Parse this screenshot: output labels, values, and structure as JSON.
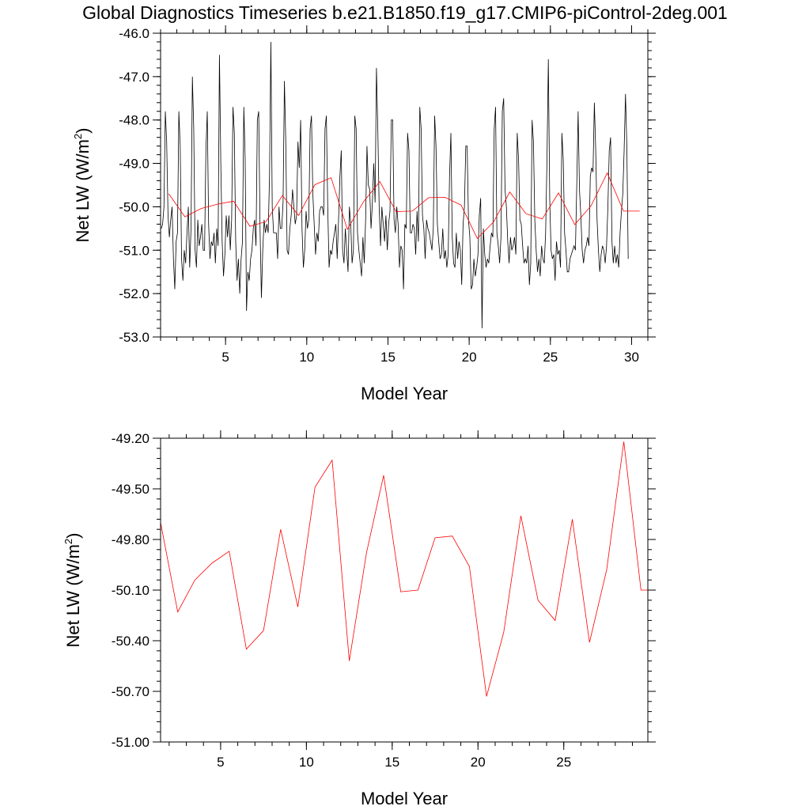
{
  "figure_title": "Global Diagnostics Timeseries b.e21.B1850.f19_g17.CMIP6-piControl-2deg.001",
  "colors": {
    "monthly": "#000000",
    "annual": "#ff0000",
    "axes": "#000000"
  },
  "chart_data": [
    {
      "id": "top",
      "type": "line",
      "xlabel": "Model Year",
      "ylabel": "Net LW (W/m",
      "ylabel_sup": "2",
      "ylabel_close": ")",
      "xlim": [
        1,
        31
      ],
      "ylim": [
        -53.0,
        -46.0
      ],
      "xticks": [
        5,
        10,
        15,
        20,
        25,
        30
      ],
      "xtick_labels": [
        "5",
        "10",
        "15",
        "20",
        "25",
        "30"
      ],
      "yticks": [
        -46.0,
        -47.0,
        -48.0,
        -49.0,
        -50.0,
        -51.0,
        -52.0,
        -53.0
      ],
      "ytick_labels": [
        "-46.0",
        "-47.0",
        "-48.0",
        "-49.0",
        "-50.0",
        "-51.0",
        "-52.0",
        "-53.0"
      ],
      "series": [
        {
          "name": "monthly",
          "color": "#000000",
          "x_start": 1.0417,
          "x_step": 0.08333,
          "values": [
            -50.5,
            -50.4,
            -50.0,
            -47.8,
            -48.5,
            -50.2,
            -50.7,
            -50.3,
            -50.0,
            -51.2,
            -51.9,
            -50.8,
            -50.6,
            -47.8,
            -48.6,
            -51.2,
            -51.7,
            -51.0,
            -51.3,
            -50.6,
            -50.0,
            -51.4,
            -50.5,
            -47.0,
            -48.2,
            -51.0,
            -51.4,
            -50.3,
            -50.9,
            -50.7,
            -50.4,
            -51.0,
            -51.0,
            -48.7,
            -47.8,
            -50.4,
            -51.2,
            -50.8,
            -50.9,
            -50.6,
            -51.3,
            -50.5,
            -50.9,
            -46.5,
            -49.0,
            -50.8,
            -51.6,
            -51.1,
            -50.2,
            -50.7,
            -50.2,
            -51.0,
            -50.3,
            -47.7,
            -48.3,
            -50.8,
            -51.7,
            -51.2,
            -52.0,
            -51.2,
            -50.8,
            -47.7,
            -48.9,
            -52.4,
            -51.5,
            -51.7,
            -51.2,
            -51.0,
            -50.5,
            -50.3,
            -50.9,
            -48.0,
            -47.8,
            -50.5,
            -52.1,
            -51.0,
            -50.3,
            -50.6,
            -50.4,
            -50.6,
            -49.3,
            -46.2,
            -50.0,
            -50.6,
            -50.6,
            -50.6,
            -51.2,
            -50.0,
            -50.5,
            -50.5,
            -49.9,
            -47.1,
            -48.5,
            -51.0,
            -51.1,
            -50.5,
            -50.2,
            -49.6,
            -50.0,
            -50.4,
            -50.2,
            -48.5,
            -49.1,
            -48.0,
            -50.5,
            -51.4,
            -51.0,
            -50.1,
            -50.5,
            -50.3,
            -48.2,
            -47.9,
            -49.7,
            -50.4,
            -51.1,
            -50.6,
            -50.8,
            -50.1,
            -50.0,
            -50.0,
            -50.2,
            -48.2,
            -47.9,
            -50.0,
            -51.4,
            -51.0,
            -51.1,
            -50.8,
            -50.6,
            -50.4,
            -51.2,
            -50.3,
            -49.3,
            -48.7,
            -51.0,
            -51.3,
            -50.5,
            -51.0,
            -51.5,
            -50.0,
            -50.4,
            -51.3,
            -51.0,
            -47.9,
            -48.2,
            -50.6,
            -51.0,
            -51.3,
            -51.6,
            -50.7,
            -51.3,
            -50.3,
            -48.6,
            -49.5,
            -49.6,
            -50.5,
            -49.9,
            -49.0,
            -49.9,
            -46.8,
            -48.2,
            -50.0,
            -50.9,
            -50.0,
            -50.4,
            -50.8,
            -50.2,
            -51.0,
            -50.4,
            -50.1,
            -48.0,
            -48.0,
            -50.3,
            -50.6,
            -50.0,
            -50.4,
            -51.4,
            -50.9,
            -51.0,
            -51.9,
            -50.4,
            -50.5,
            -48.3,
            -48.7,
            -50.6,
            -50.6,
            -50.4,
            -50.5,
            -51.1,
            -50.1,
            -50.8,
            -47.7,
            -48.2,
            -50.2,
            -50.5,
            -51.2,
            -50.3,
            -50.5,
            -50.6,
            -50.8,
            -51.0,
            -50.5,
            -47.9,
            -48.6,
            -50.4,
            -50.8,
            -51.2,
            -51.1,
            -50.5,
            -51.2,
            -51.0,
            -51.4,
            -51.1,
            -49.3,
            -48.3,
            -50.7,
            -51.3,
            -51.4,
            -50.6,
            -51.2,
            -50.8,
            -51.0,
            -51.8,
            -50.4,
            -50.0,
            -48.6,
            -48.6,
            -50.3,
            -50.7,
            -51.9,
            -51.8,
            -51.2,
            -51.6,
            -51.4,
            -51.1,
            -50.2,
            -49.8,
            -52.8,
            -50.5,
            -51.1,
            -51.4,
            -51.2,
            -51.3,
            -50.9,
            -50.6,
            -50.7,
            -48.2,
            -47.7,
            -50.6,
            -50.9,
            -51.3,
            -50.7,
            -47.8,
            -47.5,
            -49.6,
            -50.0,
            -50.8,
            -51.3,
            -50.7,
            -51.0,
            -50.9,
            -50.7,
            -51.1,
            -48.3,
            -48.9,
            -50.3,
            -50.4,
            -50.9,
            -51.3,
            -51.2,
            -51.3,
            -50.9,
            -51.8,
            -51.3,
            -48.0,
            -48.5,
            -50.3,
            -51.0,
            -51.5,
            -51.2,
            -51.6,
            -50.9,
            -51.2,
            -51.3,
            -50.6,
            -48.9,
            -46.6,
            -49.8,
            -51.0,
            -51.2,
            -51.1,
            -51.7,
            -50.8,
            -51.1,
            -51.0,
            -51.4,
            -48.3,
            -48.9,
            -50.6,
            -51.0,
            -51.5,
            -51.5,
            -51.2,
            -51.1,
            -51.0,
            -50.9,
            -51.0,
            -49.5,
            -47.8,
            -49.6,
            -50.2,
            -51.0,
            -51.3,
            -51.0,
            -50.9,
            -50.7,
            -50.9,
            -49.3,
            -49.1,
            -49.2,
            -47.6,
            -48.7,
            -50.3,
            -51.0,
            -51.5,
            -51.1,
            -50.9,
            -51.0,
            -51.3,
            -50.9,
            -50.0,
            -48.7,
            -48.4,
            -50.8,
            -51.3,
            -50.9,
            -51.3,
            -51.1,
            -51.4,
            -50.6,
            -50.1,
            -49.7,
            -48.7,
            -47.4,
            -48.6,
            -51.2
          ]
        },
        {
          "name": "annual",
          "color": "#ff0000",
          "x": [
            1.5,
            2.5,
            3.5,
            4.5,
            5.5,
            6.5,
            7.5,
            8.5,
            9.5,
            10.5,
            11.5,
            12.5,
            13.5,
            14.5,
            15.5,
            16.5,
            17.5,
            18.5,
            19.5,
            20.5,
            21.5,
            22.5,
            23.5,
            24.5,
            25.5,
            26.5,
            27.5,
            28.5,
            29.5,
            30.5
          ],
          "values": [
            -49.7,
            -50.23,
            -50.04,
            -49.94,
            -49.87,
            -50.45,
            -50.34,
            -49.74,
            -50.2,
            -49.49,
            -49.33,
            -50.52,
            -49.88,
            -49.42,
            -50.11,
            -50.1,
            -49.79,
            -49.78,
            -49.96,
            -50.73,
            -50.35,
            -49.66,
            -50.16,
            -50.28,
            -49.68,
            -50.41,
            -49.98,
            -49.22,
            -50.1,
            -50.1
          ]
        }
      ]
    },
    {
      "id": "bottom",
      "type": "line",
      "xlabel": "Model Year",
      "ylabel": "Net LW (W/m",
      "ylabel_sup": "2",
      "ylabel_close": ")",
      "xlim": [
        1.5,
        29.9
      ],
      "ylim": [
        -51.0,
        -49.2
      ],
      "xticks": [
        5,
        10,
        15,
        20,
        25
      ],
      "xtick_labels": [
        "5",
        "10",
        "15",
        "20",
        "25"
      ],
      "yticks": [
        -49.2,
        -49.5,
        -49.8,
        -50.1,
        -50.4,
        -50.7,
        -51.0
      ],
      "ytick_labels": [
        "-49.20",
        "-49.50",
        "-49.80",
        "-50.10",
        "-50.40",
        "-50.70",
        "-51.00"
      ],
      "series": [
        {
          "name": "annual",
          "color": "#ff0000",
          "x": [
            1.5,
            2.5,
            3.5,
            4.5,
            5.5,
            6.5,
            7.5,
            8.5,
            9.5,
            10.5,
            11.5,
            12.5,
            13.5,
            14.5,
            15.5,
            16.5,
            17.5,
            18.5,
            19.5,
            20.5,
            21.5,
            22.5,
            23.5,
            24.5,
            25.5,
            26.5,
            27.5,
            28.5,
            29.5,
            29.9
          ],
          "values": [
            -49.7,
            -50.23,
            -50.04,
            -49.94,
            -49.87,
            -50.45,
            -50.34,
            -49.74,
            -50.2,
            -49.49,
            -49.33,
            -50.52,
            -49.88,
            -49.42,
            -50.11,
            -50.1,
            -49.79,
            -49.78,
            -49.96,
            -50.73,
            -50.35,
            -49.66,
            -50.16,
            -50.28,
            -49.68,
            -50.41,
            -49.98,
            -49.22,
            -50.1,
            -50.1
          ]
        }
      ]
    }
  ]
}
